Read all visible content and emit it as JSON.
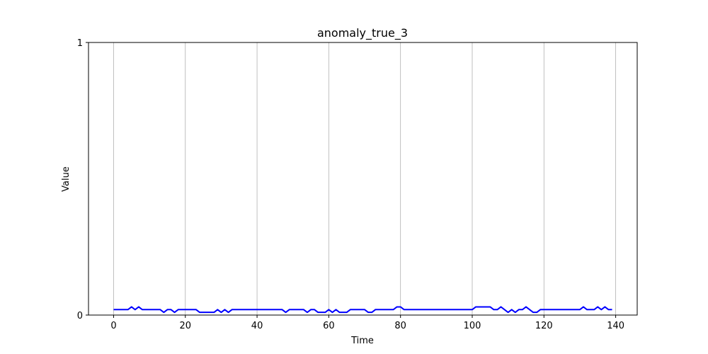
{
  "chart_data": {
    "type": "line",
    "title": "anomaly_true_3",
    "xlabel": "Time",
    "ylabel": "Value",
    "xlim": [
      -7,
      146
    ],
    "ylim": [
      0,
      1
    ],
    "x_ticks": [
      0,
      20,
      40,
      60,
      80,
      100,
      120,
      140
    ],
    "y_ticks": [
      0,
      1
    ],
    "x_tick_labels": [
      "0",
      "20",
      "40",
      "60",
      "80",
      "100",
      "120",
      "140"
    ],
    "y_tick_labels": [
      "0",
      "1"
    ],
    "grid": "x",
    "legend": "none",
    "series": [
      {
        "color": "#0000ff",
        "x": [
          0,
          1,
          2,
          3,
          4,
          5,
          6,
          7,
          8,
          9,
          10,
          11,
          12,
          13,
          14,
          15,
          16,
          17,
          18,
          19,
          20,
          21,
          22,
          23,
          24,
          25,
          26,
          27,
          28,
          29,
          30,
          31,
          32,
          33,
          34,
          35,
          36,
          37,
          38,
          39,
          40,
          41,
          42,
          43,
          44,
          45,
          46,
          47,
          48,
          49,
          50,
          51,
          52,
          53,
          54,
          55,
          56,
          57,
          58,
          59,
          60,
          61,
          62,
          63,
          64,
          65,
          66,
          67,
          68,
          69,
          70,
          71,
          72,
          73,
          74,
          75,
          76,
          77,
          78,
          79,
          80,
          81,
          82,
          83,
          84,
          85,
          86,
          87,
          88,
          89,
          90,
          91,
          92,
          93,
          94,
          95,
          96,
          97,
          98,
          99,
          100,
          101,
          102,
          103,
          104,
          105,
          106,
          107,
          108,
          109,
          110,
          111,
          112,
          113,
          114,
          115,
          116,
          117,
          118,
          119,
          120,
          121,
          122,
          123,
          124,
          125,
          126,
          127,
          128,
          129,
          130,
          131,
          132,
          133,
          134,
          135,
          136,
          137,
          138,
          139
        ],
        "y": [
          0.02,
          0.02,
          0.02,
          0.02,
          0.02,
          0.03,
          0.02,
          0.03,
          0.02,
          0.02,
          0.02,
          0.02,
          0.02,
          0.02,
          0.01,
          0.02,
          0.02,
          0.01,
          0.02,
          0.02,
          0.02,
          0.02,
          0.02,
          0.02,
          0.01,
          0.01,
          0.01,
          0.01,
          0.01,
          0.02,
          0.01,
          0.02,
          0.01,
          0.02,
          0.02,
          0.02,
          0.02,
          0.02,
          0.02,
          0.02,
          0.02,
          0.02,
          0.02,
          0.02,
          0.02,
          0.02,
          0.02,
          0.02,
          0.01,
          0.02,
          0.02,
          0.02,
          0.02,
          0.02,
          0.01,
          0.02,
          0.02,
          0.01,
          0.01,
          0.01,
          0.02,
          0.01,
          0.02,
          0.01,
          0.01,
          0.01,
          0.02,
          0.02,
          0.02,
          0.02,
          0.02,
          0.01,
          0.01,
          0.02,
          0.02,
          0.02,
          0.02,
          0.02,
          0.02,
          0.03,
          0.03,
          0.02,
          0.02,
          0.02,
          0.02,
          0.02,
          0.02,
          0.02,
          0.02,
          0.02,
          0.02,
          0.02,
          0.02,
          0.02,
          0.02,
          0.02,
          0.02,
          0.02,
          0.02,
          0.02,
          0.02,
          0.03,
          0.03,
          0.03,
          0.03,
          0.03,
          0.02,
          0.02,
          0.03,
          0.02,
          0.01,
          0.02,
          0.01,
          0.02,
          0.02,
          0.03,
          0.02,
          0.01,
          0.01,
          0.02,
          0.02,
          0.02,
          0.02,
          0.02,
          0.02,
          0.02,
          0.02,
          0.02,
          0.02,
          0.02,
          0.02,
          0.03,
          0.02,
          0.02,
          0.02,
          0.03,
          0.02,
          0.03,
          0.02,
          0.02
        ]
      }
    ]
  }
}
